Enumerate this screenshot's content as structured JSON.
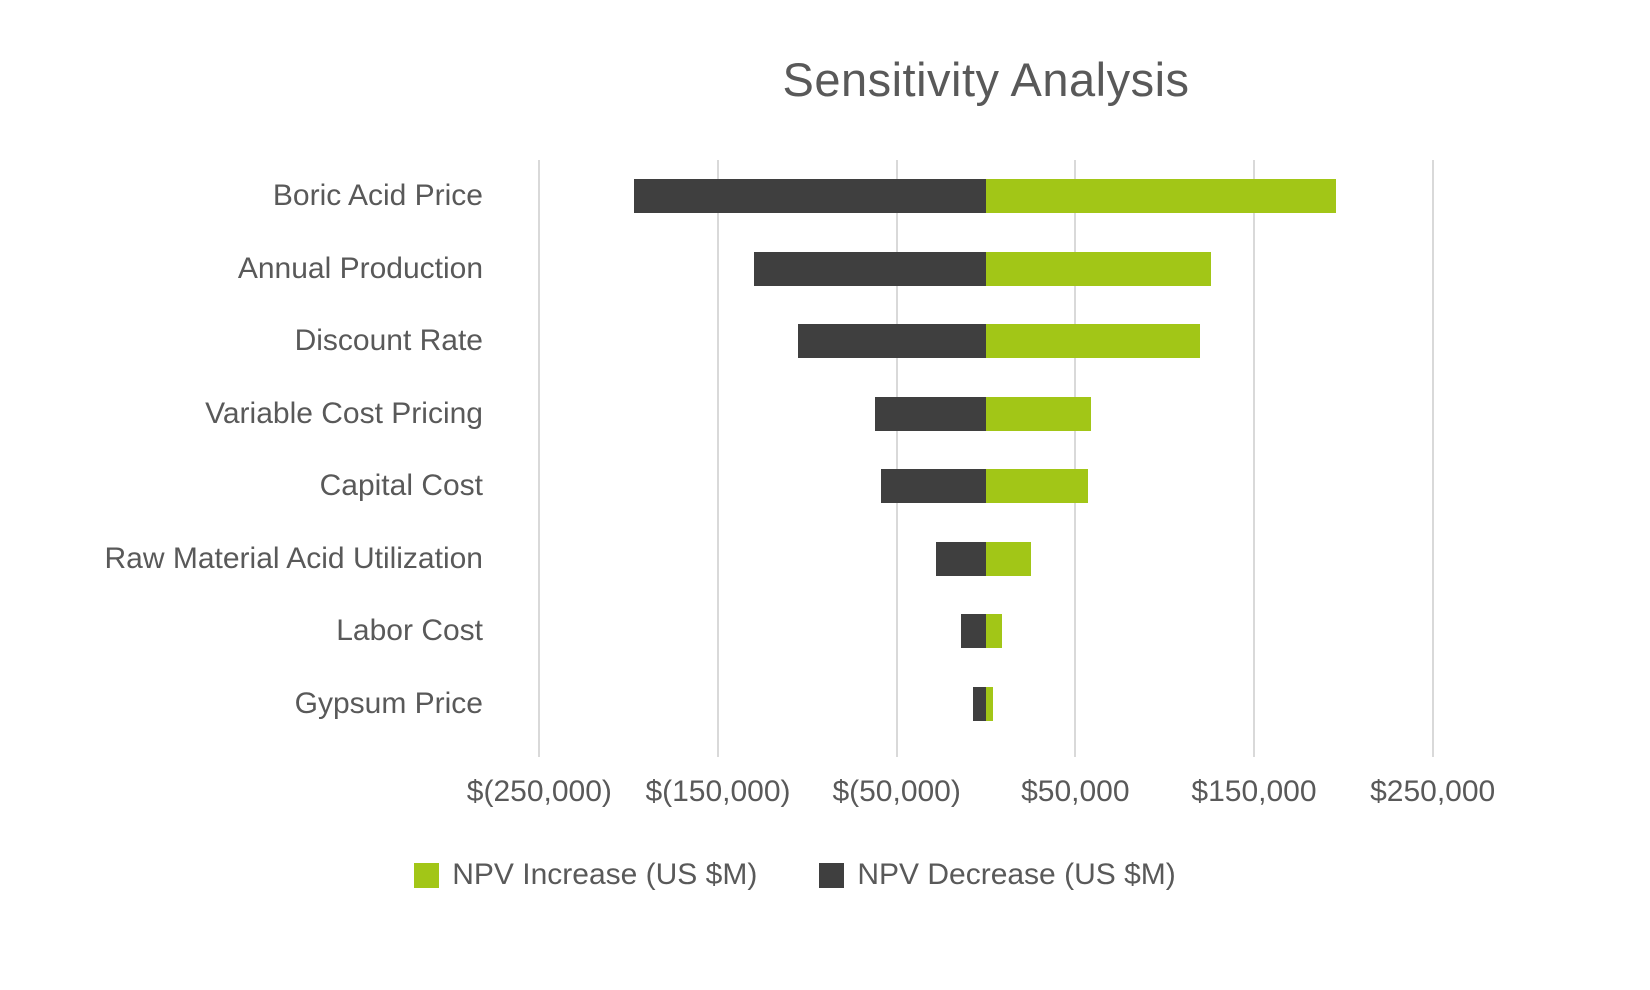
{
  "chart_data": {
    "type": "bar",
    "orientation": "horizontal",
    "title": "Sensitivity Analysis",
    "categories": [
      "Boric Acid Price",
      "Annual Production",
      "Discount Rate",
      "Variable Cost Pricing",
      "Capital Cost",
      "Raw Material Acid Utilization",
      "Labor Cost",
      "Gypsum Price"
    ],
    "series": [
      {
        "name": "NPV Increase (US $M)",
        "color": "#a2c617",
        "values": [
          196000,
          126000,
          120000,
          59000,
          57000,
          25000,
          9000,
          4000
        ]
      },
      {
        "name": "NPV Decrease (US $M)",
        "color": "#3f3f3f",
        "values": [
          -197000,
          -130000,
          -105000,
          -62000,
          -59000,
          -28000,
          -14000,
          -7000
        ]
      }
    ],
    "x_ticks": [
      {
        "value": -250000,
        "label": "$(250,000)"
      },
      {
        "value": -150000,
        "label": "$(150,000)"
      },
      {
        "value": -50000,
        "label": "$(50,000)"
      },
      {
        "value": 50000,
        "label": "$50,000"
      },
      {
        "value": 150000,
        "label": "$150,000"
      },
      {
        "value": 250000,
        "label": "$250,000"
      }
    ],
    "xlim": [
      -300000,
      300000
    ],
    "grid": true,
    "legend_position": "bottom"
  }
}
